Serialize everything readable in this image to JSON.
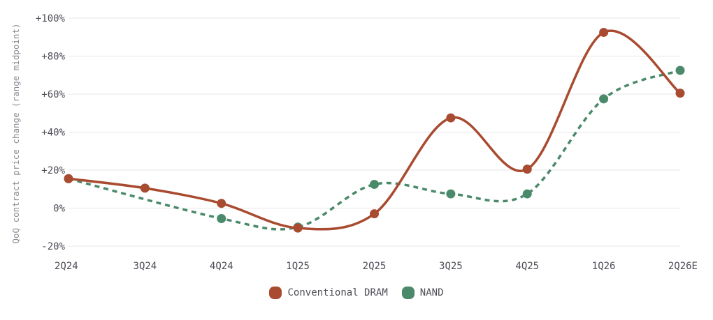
{
  "chart_data": {
    "type": "line",
    "categories": [
      "2Q24",
      "3Q24",
      "4Q24",
      "1Q25",
      "2Q25",
      "3Q25",
      "4Q25",
      "1Q26",
      "2Q26E"
    ],
    "ylabel": "QoQ contract price change (range midpoint)",
    "ylim": [
      -20,
      100
    ],
    "yticks": [
      -20,
      0,
      20,
      40,
      60,
      80,
      100
    ],
    "ytick_labels": [
      "-20%",
      "0%",
      "+20%",
      "+40%",
      "+60%",
      "+80%",
      "+100%"
    ],
    "grid": true,
    "legend_position": "bottom-center",
    "series": [
      {
        "name": "Conventional DRAM",
        "values": [
          15.5,
          10.5,
          2.5,
          -10.5,
          -3,
          47.5,
          20.5,
          92.5,
          60.5
        ],
        "color": "#a84b30",
        "style": "solid"
      },
      {
        "name": "NAND",
        "values": [
          15.5,
          null,
          -5.5,
          -10,
          12.5,
          7.5,
          7.5,
          57.5,
          72.5
        ],
        "color": "#4a8a6a",
        "style": "dashed"
      }
    ]
  }
}
